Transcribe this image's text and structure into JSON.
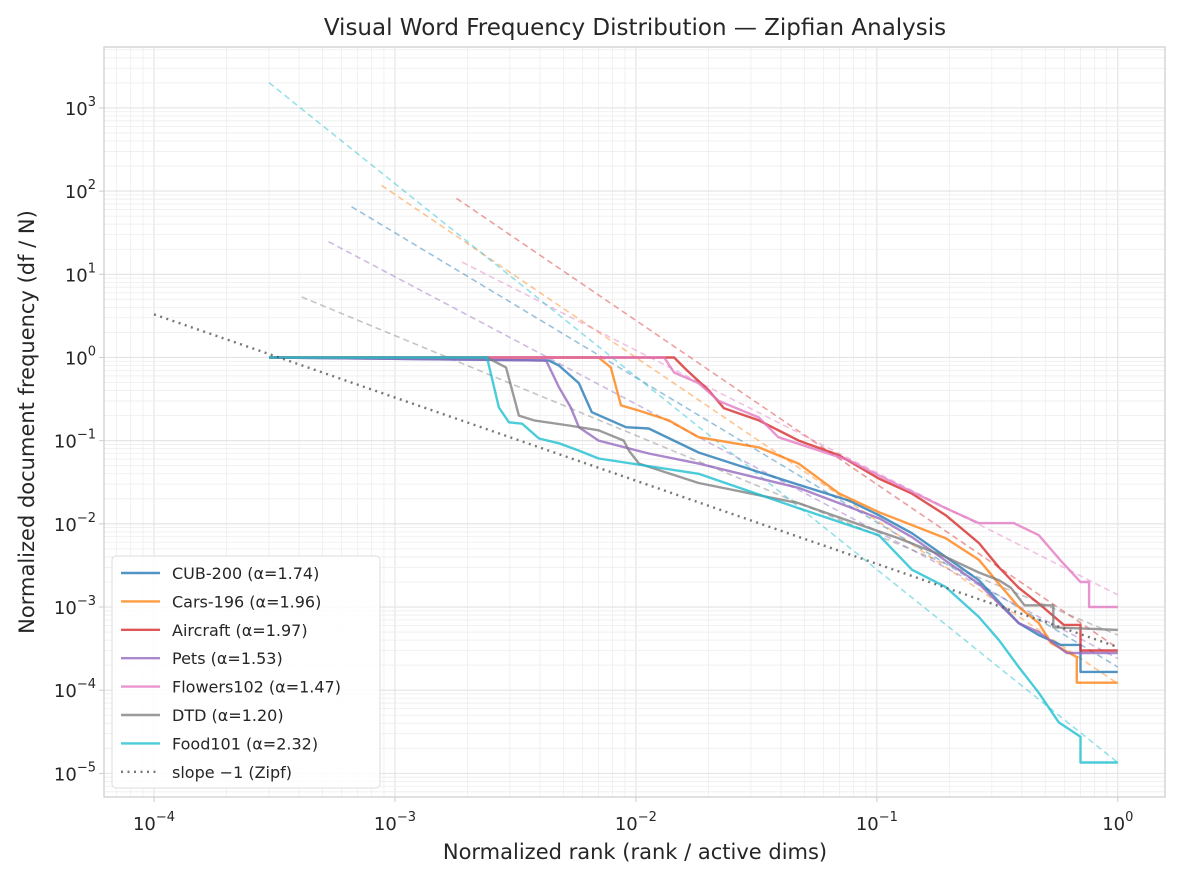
{
  "chart_data": {
    "type": "line",
    "title": "Visual Word Frequency Distribution — Zipfian Analysis",
    "xlabel": "Normalized rank  (rank / active dims)",
    "ylabel": "Normalized document frequency  (df / N)",
    "xscale": "log",
    "yscale": "log",
    "xlim": [
      6.2e-05,
      1.57
    ],
    "ylim": [
      5.2e-06,
      5400
    ],
    "grid": true,
    "legend_position": "lower-left",
    "x_ticks": [
      {
        "value": 0.0001,
        "base": "10",
        "exp": "−4"
      },
      {
        "value": 0.001,
        "base": "10",
        "exp": "−3"
      },
      {
        "value": 0.01,
        "base": "10",
        "exp": "−2"
      },
      {
        "value": 0.1,
        "base": "10",
        "exp": "−1"
      },
      {
        "value": 1,
        "base": "10",
        "exp": "0"
      }
    ],
    "y_ticks": [
      {
        "value": 1e-05,
        "base": "10",
        "exp": "−5"
      },
      {
        "value": 0.0001,
        "base": "10",
        "exp": "−4"
      },
      {
        "value": 0.001,
        "base": "10",
        "exp": "−3"
      },
      {
        "value": 0.01,
        "base": "10",
        "exp": "−2"
      },
      {
        "value": 0.1,
        "base": "10",
        "exp": "−1"
      },
      {
        "value": 1,
        "base": "10",
        "exp": "0"
      },
      {
        "value": 10,
        "base": "10",
        "exp": "1"
      },
      {
        "value": 100,
        "base": "10",
        "exp": "2"
      },
      {
        "value": 1000,
        "base": "10",
        "exp": "3"
      }
    ],
    "series": [
      {
        "name": "CUB-200 (α=1.74)",
        "color": "#1f77b4",
        "alpha": 1.74,
        "fit": {
          "coef": 0.00019,
          "x_start": 0.00066
        },
        "points": [
          [
            0.0003,
            1.0
          ],
          [
            0.00435,
            0.92
          ],
          [
            0.00479,
            0.8
          ],
          [
            0.0058,
            0.49
          ],
          [
            0.00656,
            0.22
          ],
          [
            0.0091,
            0.145
          ],
          [
            0.0113,
            0.14
          ],
          [
            0.0182,
            0.072
          ],
          [
            0.0419,
            0.033
          ],
          [
            0.0766,
            0.019
          ],
          [
            0.102,
            0.0127
          ],
          [
            0.14,
            0.0077
          ],
          [
            0.193,
            0.004
          ],
          [
            0.265,
            0.0021
          ],
          [
            0.388,
            0.00064
          ],
          [
            0.47,
            0.00046
          ],
          [
            0.58,
            0.00035
          ],
          [
            0.7,
            0.00035
          ],
          [
            0.7,
            0.000166
          ],
          [
            1.0,
            0.000166
          ]
        ]
      },
      {
        "name": "Cars-196 (α=1.96)",
        "color": "#ff7f0e",
        "alpha": 1.96,
        "fit": {
          "coef": 0.00012,
          "x_start": 0.00088
        },
        "points": [
          [
            0.0003,
            1.0
          ],
          [
            0.007,
            1.0
          ],
          [
            0.00787,
            0.76
          ],
          [
            0.00867,
            0.265
          ],
          [
            0.0103,
            0.23
          ],
          [
            0.0137,
            0.175
          ],
          [
            0.0182,
            0.11
          ],
          [
            0.0324,
            0.083
          ],
          [
            0.0474,
            0.053
          ],
          [
            0.0695,
            0.0233
          ],
          [
            0.102,
            0.0138
          ],
          [
            0.193,
            0.0067
          ],
          [
            0.265,
            0.0037
          ],
          [
            0.321,
            0.0019
          ],
          [
            0.388,
            0.001
          ],
          [
            0.47,
            0.00064
          ],
          [
            0.527,
            0.00037
          ],
          [
            0.676,
            0.00025
          ],
          [
            0.676,
            0.000123
          ],
          [
            1.0,
            0.000123
          ]
        ]
      },
      {
        "name": "Aircraft (α=1.97)",
        "color": "#d62728",
        "alpha": 1.97,
        "fit": {
          "coef": 0.00032,
          "x_start": 0.0018
        },
        "points": [
          [
            0.0003,
            1.0
          ],
          [
            0.0144,
            1.0
          ],
          [
            0.0163,
            0.7
          ],
          [
            0.0201,
            0.4
          ],
          [
            0.0232,
            0.245
          ],
          [
            0.0324,
            0.175
          ],
          [
            0.0474,
            0.1
          ],
          [
            0.0695,
            0.067
          ],
          [
            0.102,
            0.035
          ],
          [
            0.14,
            0.023
          ],
          [
            0.193,
            0.0127
          ],
          [
            0.265,
            0.0059
          ],
          [
            0.321,
            0.003
          ],
          [
            0.388,
            0.0017
          ],
          [
            0.47,
            0.0011
          ],
          [
            0.597,
            0.00061
          ],
          [
            0.7,
            0.00061
          ],
          [
            0.7,
            0.0003
          ],
          [
            1.0,
            0.0003
          ]
        ]
      },
      {
        "name": "Pets (α=1.53)",
        "color": "#9467bd",
        "alpha": 1.53,
        "fit": {
          "coef": 0.00024,
          "x_start": 0.00053
        },
        "points": [
          [
            0.0003,
            1.0
          ],
          [
            0.00424,
            0.92
          ],
          [
            0.00479,
            0.44
          ],
          [
            0.00537,
            0.25
          ],
          [
            0.0058,
            0.145
          ],
          [
            0.007,
            0.1
          ],
          [
            0.0113,
            0.07
          ],
          [
            0.0182,
            0.053
          ],
          [
            0.0474,
            0.027
          ],
          [
            0.102,
            0.0117
          ],
          [
            0.14,
            0.0069
          ],
          [
            0.193,
            0.0036
          ],
          [
            0.265,
            0.0019
          ],
          [
            0.388,
            0.00064
          ],
          [
            0.47,
            0.0005
          ],
          [
            0.614,
            0.00028
          ],
          [
            1.0,
            0.00028
          ]
        ]
      },
      {
        "name": "Flowers102 (α=1.47)",
        "color": "#e377c2",
        "alpha": 1.47,
        "fit": {
          "coef": 0.0014,
          "x_start": 0.0019
        },
        "points": [
          [
            0.0003,
            1.0
          ],
          [
            0.0131,
            1.0
          ],
          [
            0.0144,
            0.66
          ],
          [
            0.0182,
            0.49
          ],
          [
            0.0221,
            0.3
          ],
          [
            0.0324,
            0.19
          ],
          [
            0.039,
            0.11
          ],
          [
            0.0766,
            0.058
          ],
          [
            0.102,
            0.038
          ],
          [
            0.193,
            0.0154
          ],
          [
            0.265,
            0.0102
          ],
          [
            0.37,
            0.0102
          ],
          [
            0.47,
            0.0073
          ],
          [
            0.58,
            0.0036
          ],
          [
            0.7,
            0.002
          ],
          [
            0.76,
            0.002
          ],
          [
            0.76,
            0.001
          ],
          [
            1.0,
            0.001
          ]
        ]
      },
      {
        "name": "DTD (α=1.20)",
        "color": "#7f7f7f",
        "alpha": 1.2,
        "fit": {
          "coef": 0.00046,
          "x_start": 0.00041
        },
        "points": [
          [
            0.0003,
            1.0
          ],
          [
            0.00241,
            1.0
          ],
          [
            0.00289,
            0.76
          ],
          [
            0.00327,
            0.2
          ],
          [
            0.00378,
            0.175
          ],
          [
            0.00527,
            0.152
          ],
          [
            0.007,
            0.133
          ],
          [
            0.0089,
            0.1
          ],
          [
            0.00935,
            0.076
          ],
          [
            0.0103,
            0.053
          ],
          [
            0.0182,
            0.031
          ],
          [
            0.0474,
            0.0177
          ],
          [
            0.123,
            0.0067
          ],
          [
            0.193,
            0.004
          ],
          [
            0.265,
            0.0026
          ],
          [
            0.321,
            0.0021
          ],
          [
            0.36,
            0.0017
          ],
          [
            0.41,
            0.00105
          ],
          [
            0.54,
            0.00105
          ],
          [
            0.54,
            0.00057
          ],
          [
            1.0,
            0.00053
          ]
        ]
      },
      {
        "name": "Food101 (α=2.32)",
        "color": "#17becf",
        "alpha": 2.32,
        "fit": {
          "coef": 1.35e-05,
          "x_start": 0.0003
        },
        "points": [
          [
            0.0003,
            1.0
          ],
          [
            0.00241,
            1.0
          ],
          [
            0.0027,
            0.25
          ],
          [
            0.00297,
            0.166
          ],
          [
            0.00337,
            0.16
          ],
          [
            0.00396,
            0.106
          ],
          [
            0.00479,
            0.093
          ],
          [
            0.0058,
            0.076
          ],
          [
            0.007,
            0.061
          ],
          [
            0.0182,
            0.04
          ],
          [
            0.0474,
            0.0154
          ],
          [
            0.102,
            0.0073
          ],
          [
            0.14,
            0.0028
          ],
          [
            0.193,
            0.00174
          ],
          [
            0.265,
            0.00076
          ],
          [
            0.321,
            0.0004
          ],
          [
            0.388,
            0.00019
          ],
          [
            0.47,
            9.3e-05
          ],
          [
            0.569,
            4.1e-05
          ],
          [
            0.7,
            2.75e-05
          ],
          [
            0.7,
            1.35e-05
          ],
          [
            1.0,
            1.35e-05
          ]
        ]
      }
    ],
    "reference": {
      "name": "slope −1 (Zipf)",
      "color": "#555555",
      "slope": -1,
      "coef": 0.00033,
      "x_range": [
        0.0001,
        1.0
      ]
    }
  }
}
